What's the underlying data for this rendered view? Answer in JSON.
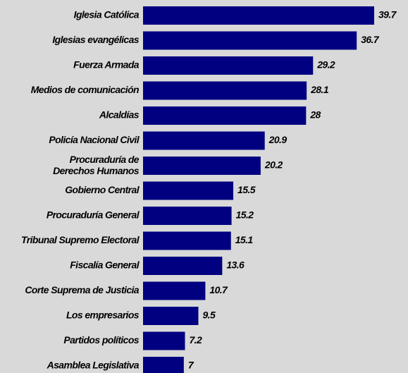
{
  "chart_data": {
    "type": "barh",
    "categories": [
      "Iglesia Católica",
      "Iglesias evangélicas",
      "Fuerza Armada",
      "Medios de comunicación",
      "Alcaldías",
      "Policía Nacional Civil",
      "Procuraduría de\nDerechos Humanos",
      "Gobierno Central",
      "Procuraduría General",
      "Tribunal Supremo Electoral",
      "Fiscalía General",
      "Corte Suprema de Justicia",
      "Los empresarios",
      "Partidos políticos",
      "Asamblea Legislativa"
    ],
    "values": [
      39.7,
      36.7,
      29.2,
      28.1,
      28,
      20.9,
      20.2,
      15.5,
      15.2,
      15.1,
      13.6,
      10.7,
      9.5,
      7.2,
      7
    ],
    "color": "#000080"
  }
}
